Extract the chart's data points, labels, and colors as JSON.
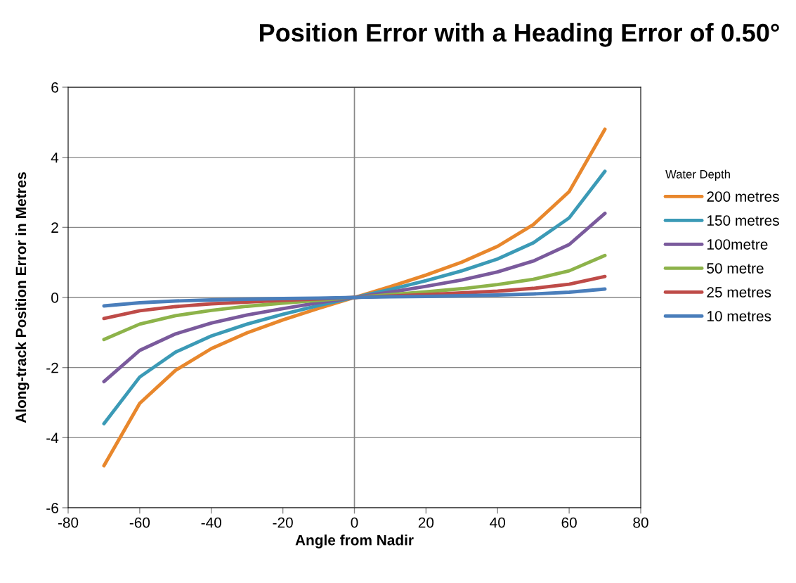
{
  "chart_data": {
    "type": "line",
    "title": "Position Error with a Heading Error of 0.50°",
    "xlabel": "Angle from Nadir",
    "ylabel": "Along-track Position Error in Metres",
    "legend_title": "Water Depth",
    "x": [
      -70,
      -60,
      -50,
      -40,
      -30,
      -20,
      -10,
      0,
      10,
      20,
      30,
      40,
      50,
      60,
      70
    ],
    "series": [
      {
        "name": "200 metres",
        "color": "#e8872c",
        "values": [
          -4.8,
          -3.02,
          -2.08,
          -1.46,
          -1.01,
          -0.64,
          -0.31,
          0,
          0.31,
          0.64,
          1.01,
          1.46,
          2.08,
          3.02,
          4.8
        ]
      },
      {
        "name": "150 metres",
        "color": "#3b9ab6",
        "values": [
          -3.6,
          -2.27,
          -1.56,
          -1.1,
          -0.76,
          -0.48,
          -0.23,
          0,
          0.23,
          0.48,
          0.76,
          1.1,
          1.56,
          2.27,
          3.6
        ]
      },
      {
        "name": "100metre",
        "color": "#7a5a9c",
        "values": [
          -2.4,
          -1.51,
          -1.04,
          -0.73,
          -0.5,
          -0.32,
          -0.15,
          0,
          0.15,
          0.32,
          0.5,
          0.73,
          1.04,
          1.51,
          2.4
        ]
      },
      {
        "name": "50 metre",
        "color": "#8db34a",
        "values": [
          -1.2,
          -0.76,
          -0.52,
          -0.37,
          -0.25,
          -0.16,
          -0.08,
          0,
          0.08,
          0.16,
          0.25,
          0.37,
          0.52,
          0.76,
          1.2
        ]
      },
      {
        "name": "25 metres",
        "color": "#be4b48",
        "values": [
          -0.6,
          -0.38,
          -0.26,
          -0.18,
          -0.13,
          -0.08,
          -0.04,
          0,
          0.04,
          0.08,
          0.13,
          0.18,
          0.26,
          0.38,
          0.6
        ]
      },
      {
        "name": "10 metres",
        "color": "#4a7ebb",
        "values": [
          -0.24,
          -0.15,
          -0.1,
          -0.07,
          -0.05,
          -0.03,
          -0.02,
          0,
          0.02,
          0.03,
          0.05,
          0.07,
          0.1,
          0.15,
          0.24
        ]
      }
    ],
    "xlim": [
      -80,
      80
    ],
    "xticks": [
      -80,
      -60,
      -40,
      -20,
      0,
      20,
      40,
      60,
      80
    ],
    "ylim": [
      -6,
      6
    ],
    "yticks": [
      -6,
      -4,
      -2,
      0,
      2,
      4,
      6
    ],
    "ref_lines": [
      {
        "axis": "x",
        "value": 0,
        "color": "#888888"
      }
    ],
    "grid": "y",
    "legend": "right",
    "marker": "none",
    "line_style": "solid"
  }
}
